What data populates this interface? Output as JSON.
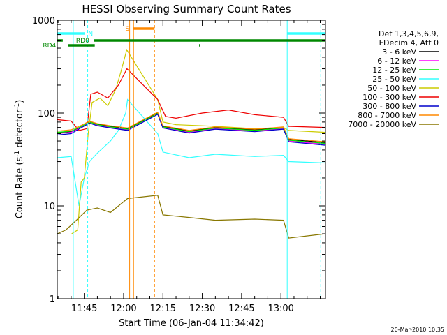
{
  "chart_data": {
    "type": "line",
    "title": "HESSI Observing Summary Count Rates",
    "xlabel": "Start Time (06-Jan-04 11:34:42)",
    "ylabel_main": "Count Rate (s",
    "ylabel_exp1": "-1",
    "ylabel_mid": " detector",
    "ylabel_exp2": "-1",
    "ylabel_end": ")",
    "x_ticks": [
      "11:45",
      "12:00",
      "12:15",
      "12:30",
      "12:45",
      "13:00"
    ],
    "x_tick_minutes": [
      45,
      60,
      75,
      90,
      105,
      120
    ],
    "x_range_minutes": [
      34.7,
      137
    ],
    "y_log": true,
    "y_range": [
      1,
      1000
    ],
    "y_ticks": [
      "1",
      "10",
      "100",
      "1000"
    ],
    "y_tick_values": [
      1,
      10,
      100,
      1000
    ],
    "legend_header": [
      "Det 1,3,4,5,6,9,",
      "FDecim 4, Att 0"
    ],
    "timestamp": "20-Mar-2010 10:35",
    "status_bars": [
      {
        "label": "N",
        "color": "#33ffff",
        "row": 0,
        "segments": [
          [
            34.7,
            45.2
          ],
          [
            122.4,
            137
          ]
        ]
      },
      {
        "label": "S",
        "color": "#ff8800",
        "row": -1,
        "segments": [
          [
            63.8,
            71.8
          ]
        ]
      },
      {
        "label": "RD0",
        "color": "#008800",
        "row": 1,
        "segments": [
          [
            34.7,
            36.8
          ],
          [
            48.8,
            137
          ]
        ]
      },
      {
        "label": "RD4",
        "color": "#008800",
        "row": 2,
        "segments": [
          [
            38.8,
            49.0
          ],
          [
            88.8,
            89.2
          ]
        ]
      }
    ],
    "vlines": [
      {
        "x": 40.8,
        "color": "#33ffff",
        "dash": false
      },
      {
        "x": 46.3,
        "color": "#33ffff",
        "dash": true
      },
      {
        "x": 62.3,
        "color": "#ff8800",
        "dash": false
      },
      {
        "x": 63.8,
        "color": "#ff8800",
        "dash": false
      },
      {
        "x": 71.8,
        "color": "#ff8800",
        "dash": true
      },
      {
        "x": 122.4,
        "color": "#33ffff",
        "dash": false
      },
      {
        "x": 135.2,
        "color": "#33ffff",
        "dash": true
      }
    ],
    "series": [
      {
        "name": "3 - 6 keV",
        "color": "#000000",
        "points": [
          [
            34.7,
            62
          ],
          [
            40,
            63
          ],
          [
            44,
            72
          ],
          [
            47,
            80
          ],
          [
            50,
            76
          ],
          [
            55,
            72
          ],
          [
            61.5,
            68
          ],
          [
            73,
            100
          ],
          [
            75,
            72
          ],
          [
            85,
            64
          ],
          [
            95,
            70
          ],
          [
            110,
            66
          ],
          [
            121,
            70
          ],
          [
            123,
            52
          ],
          [
            137,
            48
          ]
        ]
      },
      {
        "name": "6 - 12 keV",
        "color": "#ff00ff",
        "points": [
          [
            34.7,
            60
          ],
          [
            40,
            62
          ],
          [
            44,
            70
          ],
          [
            47,
            78
          ],
          [
            50,
            74
          ],
          [
            55,
            70
          ],
          [
            61.5,
            66
          ],
          [
            73,
            98
          ],
          [
            75,
            70
          ],
          [
            85,
            62
          ],
          [
            95,
            68
          ],
          [
            110,
            64
          ],
          [
            121,
            68
          ],
          [
            123,
            50
          ],
          [
            137,
            46
          ]
        ]
      },
      {
        "name": "12 - 25 keV",
        "color": "#00ee00",
        "points": [
          [
            34.7,
            62
          ],
          [
            40,
            64
          ],
          [
            44,
            72
          ],
          [
            47,
            80
          ],
          [
            50,
            75
          ],
          [
            55,
            71
          ],
          [
            61.5,
            67
          ],
          [
            73,
            99
          ],
          [
            75,
            71
          ],
          [
            85,
            63
          ],
          [
            95,
            69
          ],
          [
            110,
            65
          ],
          [
            121,
            69
          ],
          [
            123,
            51
          ],
          [
            137,
            47
          ]
        ]
      },
      {
        "name": "25 - 50 keV",
        "color": "#33ffff",
        "points": [
          [
            34.7,
            33
          ],
          [
            40,
            34
          ],
          [
            43,
            10
          ],
          [
            45,
            20
          ],
          [
            47,
            30
          ],
          [
            50,
            37
          ],
          [
            55,
            50
          ],
          [
            58,
            65
          ],
          [
            60.8,
            100
          ],
          [
            61.5,
            140
          ],
          [
            73,
            60
          ],
          [
            75,
            38
          ],
          [
            85,
            33
          ],
          [
            95,
            36
          ],
          [
            110,
            34
          ],
          [
            121,
            35
          ],
          [
            123,
            30
          ],
          [
            137,
            29
          ]
        ]
      },
      {
        "name": "50 - 100 keV",
        "color": "#cccc00",
        "points": [
          [
            40.2,
            5
          ],
          [
            42.5,
            5.5
          ],
          [
            43.8,
            18
          ],
          [
            45,
            20
          ],
          [
            46.5,
            60
          ],
          [
            48,
            130
          ],
          [
            51,
            145
          ],
          [
            54,
            120
          ],
          [
            57,
            180
          ],
          [
            59,
            280
          ],
          [
            61.2,
            480
          ],
          [
            73,
            140
          ],
          [
            75,
            80
          ],
          [
            80,
            75
          ],
          [
            95,
            72
          ],
          [
            110,
            68
          ],
          [
            121,
            70
          ],
          [
            123,
            65
          ],
          [
            137,
            62
          ]
        ]
      },
      {
        "name": "100 - 300 keV",
        "color": "#ee0000",
        "points": [
          [
            34.7,
            85
          ],
          [
            40,
            82
          ],
          [
            43,
            65
          ],
          [
            46,
            68
          ],
          [
            47.5,
            160
          ],
          [
            50,
            168
          ],
          [
            54,
            145
          ],
          [
            58,
            200
          ],
          [
            61.3,
            300
          ],
          [
            73,
            140
          ],
          [
            76,
            92
          ],
          [
            80,
            88
          ],
          [
            90,
            100
          ],
          [
            100,
            108
          ],
          [
            110,
            96
          ],
          [
            121,
            90
          ],
          [
            123,
            72
          ],
          [
            137,
            70
          ]
        ]
      },
      {
        "name": "300 - 800 keV",
        "color": "#0000cc",
        "points": [
          [
            34.7,
            58
          ],
          [
            40,
            60
          ],
          [
            44,
            70
          ],
          [
            47,
            78
          ],
          [
            50,
            73
          ],
          [
            55,
            69
          ],
          [
            61.5,
            65
          ],
          [
            73,
            97
          ],
          [
            75,
            69
          ],
          [
            85,
            61
          ],
          [
            95,
            67
          ],
          [
            110,
            63
          ],
          [
            121,
            67
          ],
          [
            123,
            49
          ],
          [
            137,
            45
          ]
        ]
      },
      {
        "name": "800 - 7000 keV",
        "color": "#ff8800",
        "points": [
          [
            34.7,
            64
          ],
          [
            40,
            66
          ],
          [
            44,
            74
          ],
          [
            47,
            82
          ],
          [
            50,
            77
          ],
          [
            55,
            73
          ],
          [
            61.5,
            69
          ],
          [
            73,
            102
          ],
          [
            75,
            73
          ],
          [
            85,
            65
          ],
          [
            95,
            71
          ],
          [
            110,
            67
          ],
          [
            121,
            71
          ],
          [
            123,
            53
          ],
          [
            137,
            49
          ]
        ]
      },
      {
        "name": "7000 - 20000 keV",
        "color": "#887700",
        "points": [
          [
            34.7,
            5
          ],
          [
            38,
            5.5
          ],
          [
            42,
            7
          ],
          [
            46,
            9
          ],
          [
            50,
            9.5
          ],
          [
            55,
            8.5
          ],
          [
            61.5,
            12
          ],
          [
            73,
            13
          ],
          [
            75,
            8
          ],
          [
            85,
            7.5
          ],
          [
            95,
            7
          ],
          [
            110,
            7.2
          ],
          [
            121,
            7
          ],
          [
            123,
            4.5
          ],
          [
            137,
            5
          ]
        ]
      }
    ]
  }
}
